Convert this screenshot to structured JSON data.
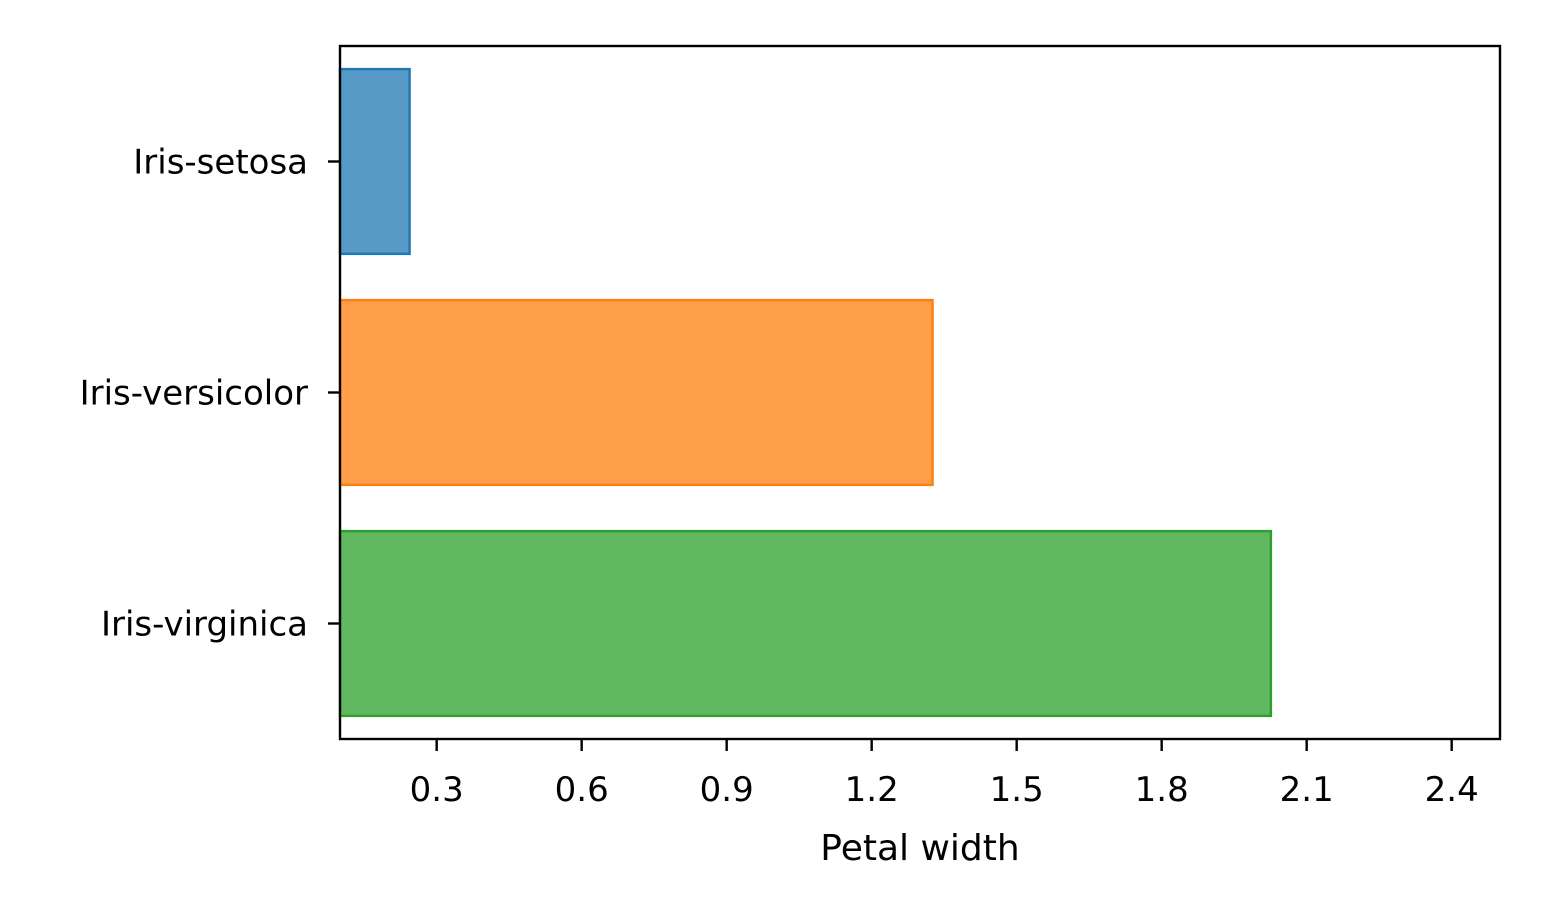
{
  "chart_data": {
    "type": "bar",
    "orientation": "horizontal",
    "categories": [
      "Iris-setosa",
      "Iris-versicolor",
      "Iris-virginica"
    ],
    "values": [
      0.244,
      1.326,
      2.026
    ],
    "colors": [
      "#1f77b4",
      "#ff7f0e",
      "#2ca02c"
    ],
    "xlabel": "Petal width",
    "xlim": [
      0.1,
      2.5
    ],
    "xticks": [
      0.3,
      0.6,
      0.9,
      1.2,
      1.5,
      1.8,
      2.1,
      2.4
    ],
    "xtick_labels": [
      "0.3",
      "0.6",
      "0.9",
      "1.2",
      "1.5",
      "1.8",
      "2.1",
      "2.4"
    ],
    "grid": false,
    "legend": "none"
  }
}
